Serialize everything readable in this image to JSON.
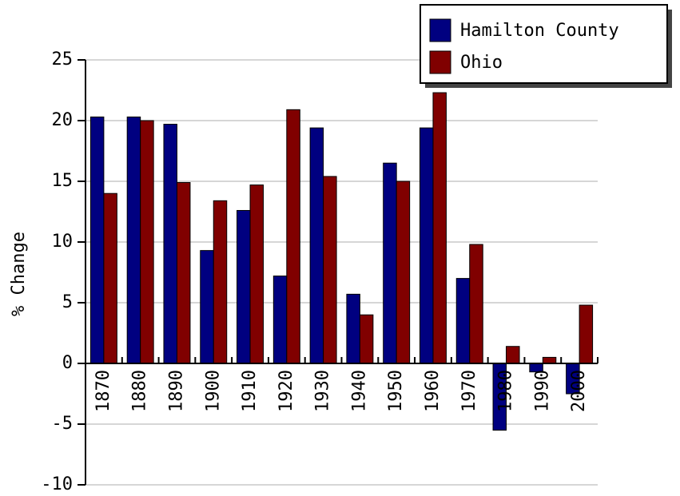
{
  "chart_data": {
    "type": "bar",
    "y_label": "% Change",
    "categories": [
      "1870",
      "1880",
      "1890",
      "1900",
      "1910",
      "1920",
      "1930",
      "1940",
      "1950",
      "1960",
      "1970",
      "1980",
      "1990",
      "2000"
    ],
    "series": [
      {
        "name": "Hamilton County",
        "color": "#000080",
        "values": [
          20.3,
          20.3,
          19.7,
          9.3,
          12.6,
          7.2,
          19.4,
          5.7,
          16.5,
          19.4,
          7.0,
          -5.5,
          -0.7,
          -2.5
        ]
      },
      {
        "name": "Ohio",
        "color": "#800000",
        "values": [
          14.0,
          20.0,
          14.9,
          13.4,
          14.7,
          20.9,
          15.4,
          4.0,
          15.0,
          22.3,
          9.8,
          1.4,
          0.5,
          4.8
        ]
      }
    ],
    "ylim": [
      -10,
      25
    ],
    "yticks": [
      -10,
      -5,
      0,
      5,
      10,
      15,
      20,
      25
    ],
    "grid": true,
    "legend": "top-right"
  }
}
